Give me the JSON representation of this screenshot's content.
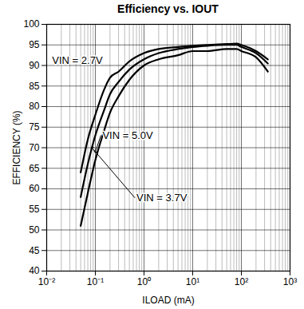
{
  "chart_data": {
    "type": "line",
    "title": "Efficiency vs. IOUT",
    "x_label": "ILOAD (mA)",
    "y_label": "EFFICIENCY (%)",
    "log": "x",
    "grid": true,
    "xlim": [
      0.01,
      1000
    ],
    "ylim": [
      40,
      100
    ],
    "xticks": [
      {
        "value": 0.01,
        "label": "10⁻²"
      },
      {
        "value": 0.1,
        "label": "10⁻¹"
      },
      {
        "value": 1,
        "label": "10⁰"
      },
      {
        "value": 10,
        "label": "10¹"
      },
      {
        "value": 100,
        "label": "10²"
      },
      {
        "value": 1000,
        "label": "10³"
      }
    ],
    "yticks": [
      40,
      45,
      50,
      55,
      60,
      65,
      70,
      75,
      80,
      85,
      90,
      95,
      100
    ],
    "x": [
      0.05,
      0.07,
      0.1,
      0.15,
      0.2,
      0.3,
      0.5,
      1,
      2,
      5,
      10,
      20,
      50,
      80,
      100,
      200,
      350
    ],
    "series": [
      {
        "name": "VIN = 2.7V",
        "color": "#000000",
        "values": [
          64,
          72,
          78,
          84,
          87,
          88.5,
          91,
          93,
          94,
          94.5,
          94.8,
          95,
          95.2,
          95.3,
          95,
          93.5,
          91.5
        ]
      },
      {
        "name": "VIN = 3.7V",
        "color": "#000000",
        "values": [
          58,
          66,
          73,
          79,
          83,
          86,
          89,
          91.5,
          93,
          94,
          94.5,
          94.8,
          95,
          95,
          94.5,
          93,
          90.5
        ]
      },
      {
        "name": "VIN = 5.0V",
        "color": "#000000",
        "values": [
          51,
          59,
          67,
          74,
          78.5,
          82.5,
          86.5,
          90,
          91.5,
          92.5,
          93.5,
          93.5,
          94,
          94,
          93.5,
          92,
          88.5
        ]
      }
    ],
    "annotations": [
      {
        "text": "VIN = 2.7V",
        "x": 0.012,
        "y": 91.2
      },
      {
        "text": "VIN = 5.0V",
        "x": 0.13,
        "y": 73,
        "arrow": [
          0.1,
          69
        ]
      },
      {
        "text": "VIN = 3.7V",
        "x": 0.65,
        "y": 57.8,
        "arrow": [
          0.085,
          70
        ]
      }
    ]
  }
}
